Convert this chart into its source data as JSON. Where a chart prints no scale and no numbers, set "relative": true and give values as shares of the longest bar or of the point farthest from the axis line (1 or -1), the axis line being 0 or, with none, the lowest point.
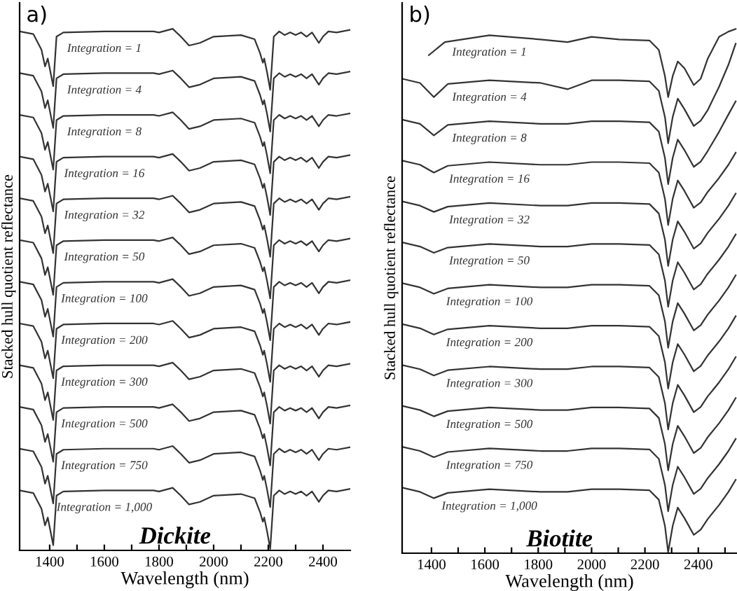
{
  "chart_data": [
    {
      "type": "line",
      "xlabel": "Wavelength (nm)",
      "ylabel": "Stacked hull quotient reflectance",
      "annotations": [
        "a)",
        "Dickite"
      ],
      "relative": true,
      "tick_labels": "x",
      "xlim": [
        1290,
        2500
      ],
      "xticks": [
        1400,
        {
          "value": 1500,
          "label": null
        },
        1600,
        {
          "value": 1700,
          "label": null
        },
        1800,
        {
          "value": 1900,
          "label": null
        },
        2000,
        {
          "value": 2100,
          "label": null
        },
        2200,
        {
          "value": 2300,
          "label": null
        },
        2400
      ],
      "x": [
        1290,
        1340,
        1370,
        1383,
        1393,
        1413,
        1425,
        1450,
        1600,
        1780,
        1800,
        1850,
        1880,
        1910,
        1950,
        2000,
        2100,
        2150,
        2170,
        2180,
        2185,
        2195,
        2207,
        2220,
        2240,
        2260,
        2280,
        2300,
        2320,
        2340,
        2360,
        2385,
        2400,
        2420,
        2450,
        2500
      ],
      "series": [
        {
          "name": "Integration = 1",
          "color": "#333333",
          "values": [
            0.995,
            0.99,
            0.96,
            0.928,
            0.943,
            0.89,
            0.985,
            0.993,
            0.995,
            0.995,
            0.993,
            1,
            0.985,
            0.968,
            0.973,
            0.985,
            0.988,
            0.98,
            0.953,
            0.935,
            0.943,
            0.918,
            0.883,
            0.985,
            0.995,
            0.988,
            0.993,
            0.988,
            0.993,
            0.985,
            0.993,
            0.973,
            0.985,
            0.995,
            0.993,
            0.998
          ]
        },
        {
          "name": "Integration = 4",
          "color": "#333333",
          "values": [
            0.915,
            0.91,
            0.88,
            0.848,
            0.863,
            0.81,
            0.905,
            0.913,
            0.915,
            0.915,
            0.913,
            0.92,
            0.905,
            0.888,
            0.893,
            0.905,
            0.908,
            0.9,
            0.873,
            0.855,
            0.863,
            0.838,
            0.803,
            0.905,
            0.915,
            0.908,
            0.913,
            0.908,
            0.913,
            0.905,
            0.913,
            0.893,
            0.905,
            0.915,
            0.913,
            0.918
          ]
        },
        {
          "name": "Integration = 8",
          "color": "#333333",
          "values": [
            0.835,
            0.83,
            0.8,
            0.768,
            0.783,
            0.73,
            0.825,
            0.833,
            0.835,
            0.835,
            0.833,
            0.84,
            0.825,
            0.808,
            0.813,
            0.825,
            0.828,
            0.82,
            0.793,
            0.775,
            0.783,
            0.758,
            0.723,
            0.825,
            0.835,
            0.828,
            0.833,
            0.828,
            0.833,
            0.825,
            0.833,
            0.813,
            0.825,
            0.835,
            0.833,
            0.838
          ]
        },
        {
          "name": "Integration = 16",
          "color": "#333333",
          "values": [
            0.755,
            0.75,
            0.72,
            0.688,
            0.703,
            0.65,
            0.745,
            0.753,
            0.755,
            0.755,
            0.753,
            0.76,
            0.745,
            0.728,
            0.733,
            0.745,
            0.748,
            0.74,
            0.713,
            0.695,
            0.703,
            0.678,
            0.643,
            0.745,
            0.755,
            0.748,
            0.753,
            0.748,
            0.753,
            0.745,
            0.753,
            0.733,
            0.745,
            0.755,
            0.753,
            0.758
          ]
        },
        {
          "name": "Integration = 32",
          "color": "#333333",
          "values": [
            0.675,
            0.67,
            0.64,
            0.608,
            0.623,
            0.57,
            0.665,
            0.673,
            0.675,
            0.675,
            0.673,
            0.68,
            0.665,
            0.648,
            0.653,
            0.665,
            0.668,
            0.66,
            0.633,
            0.615,
            0.623,
            0.598,
            0.563,
            0.665,
            0.675,
            0.668,
            0.673,
            0.668,
            0.673,
            0.665,
            0.673,
            0.653,
            0.665,
            0.675,
            0.673,
            0.678
          ]
        },
        {
          "name": "Integration = 50",
          "color": "#333333",
          "values": [
            0.595,
            0.59,
            0.56,
            0.528,
            0.543,
            0.49,
            0.585,
            0.593,
            0.595,
            0.595,
            0.593,
            0.6,
            0.585,
            0.568,
            0.573,
            0.585,
            0.588,
            0.58,
            0.553,
            0.535,
            0.543,
            0.518,
            0.483,
            0.585,
            0.595,
            0.588,
            0.593,
            0.588,
            0.593,
            0.585,
            0.593,
            0.573,
            0.585,
            0.595,
            0.593,
            0.598
          ]
        },
        {
          "name": "Integration = 100",
          "color": "#333333",
          "values": [
            0.515,
            0.51,
            0.48,
            0.448,
            0.463,
            0.41,
            0.505,
            0.513,
            0.515,
            0.515,
            0.513,
            0.52,
            0.505,
            0.488,
            0.493,
            0.505,
            0.508,
            0.5,
            0.473,
            0.455,
            0.463,
            0.438,
            0.403,
            0.505,
            0.515,
            0.508,
            0.513,
            0.508,
            0.513,
            0.505,
            0.513,
            0.493,
            0.505,
            0.515,
            0.513,
            0.518
          ]
        },
        {
          "name": "Integration = 200",
          "color": "#333333",
          "values": [
            0.435,
            0.43,
            0.4,
            0.368,
            0.383,
            0.33,
            0.425,
            0.433,
            0.435,
            0.435,
            0.433,
            0.44,
            0.425,
            0.408,
            0.413,
            0.425,
            0.428,
            0.42,
            0.393,
            0.375,
            0.383,
            0.358,
            0.323,
            0.425,
            0.435,
            0.428,
            0.433,
            0.428,
            0.433,
            0.425,
            0.433,
            0.413,
            0.425,
            0.435,
            0.433,
            0.438
          ]
        },
        {
          "name": "Integration = 300",
          "color": "#333333",
          "values": [
            0.355,
            0.35,
            0.32,
            0.288,
            0.303,
            0.25,
            0.345,
            0.353,
            0.355,
            0.355,
            0.353,
            0.36,
            0.345,
            0.328,
            0.333,
            0.345,
            0.348,
            0.34,
            0.313,
            0.295,
            0.303,
            0.278,
            0.243,
            0.345,
            0.355,
            0.348,
            0.353,
            0.348,
            0.353,
            0.345,
            0.353,
            0.333,
            0.345,
            0.355,
            0.353,
            0.358
          ]
        },
        {
          "name": "Integration = 500",
          "color": "#333333",
          "values": [
            0.275,
            0.27,
            0.24,
            0.208,
            0.223,
            0.17,
            0.265,
            0.273,
            0.275,
            0.275,
            0.273,
            0.28,
            0.265,
            0.248,
            0.253,
            0.265,
            0.268,
            0.26,
            0.233,
            0.215,
            0.223,
            0.198,
            0.163,
            0.265,
            0.275,
            0.268,
            0.273,
            0.268,
            0.273,
            0.265,
            0.273,
            0.253,
            0.265,
            0.275,
            0.273,
            0.278
          ]
        },
        {
          "name": "Integration = 750",
          "color": "#333333",
          "values": [
            0.195,
            0.19,
            0.16,
            0.128,
            0.143,
            0.09,
            0.185,
            0.193,
            0.195,
            0.195,
            0.193,
            0.2,
            0.185,
            0.168,
            0.173,
            0.185,
            0.188,
            0.18,
            0.153,
            0.135,
            0.143,
            0.118,
            0.083,
            0.185,
            0.195,
            0.188,
            0.193,
            0.188,
            0.193,
            0.185,
            0.193,
            0.173,
            0.185,
            0.195,
            0.193,
            0.198
          ]
        },
        {
          "name": "Integration = 1,000",
          "color": "#333333",
          "values": [
            0.115,
            0.11,
            0.08,
            0.048,
            0.063,
            0.01,
            0.105,
            0.113,
            0.115,
            0.115,
            0.113,
            0.12,
            0.105,
            0.088,
            0.093,
            0.105,
            0.108,
            0.1,
            0.073,
            0.055,
            0.063,
            0.038,
            0.003,
            0.105,
            0.115,
            0.108,
            0.113,
            0.108,
            0.113,
            0.105,
            0.113,
            0.093,
            0.105,
            0.115,
            0.113,
            0.118
          ]
        }
      ]
    },
    {
      "type": "line",
      "xlabel": "Wavelength (nm)",
      "ylabel": "Stacked hull quotient reflectance",
      "annotations": [
        "b)",
        "Biotite"
      ],
      "relative": true,
      "tick_labels": "x",
      "xlim": [
        1290,
        2545
      ],
      "xticks": [
        1400,
        {
          "value": 1500,
          "label": null
        },
        1600,
        {
          "value": 1700,
          "label": null
        },
        1800,
        {
          "value": 1900,
          "label": null
        },
        2000,
        {
          "value": 2100,
          "label": null
        },
        2200,
        {
          "value": 2300,
          "label": null
        },
        2400,
        {
          "value": 2500,
          "label": null
        }
      ],
      "x": [
        1290,
        1357,
        1409,
        1461,
        1617,
        1809,
        1910,
        2000,
        2104,
        2217,
        2252,
        2275,
        2287,
        2304,
        2323,
        2348,
        2383,
        2409,
        2435,
        2478,
        2513,
        2540
      ],
      "series": [
        {
          "name": "Integration = 1",
          "color": "#333333",
          "x": [
            1390,
            1450,
            1617,
            1809,
            1910,
            2000,
            2104,
            2217,
            2252,
            2275,
            2287,
            2304,
            2323,
            2348,
            2383,
            2409,
            2435,
            2478,
            2513,
            2540
          ],
          "values": [
            0.95,
            0.975,
            0.988,
            0.98,
            0.975,
            0.985,
            0.98,
            0.978,
            0.96,
            0.91,
            0.87,
            0.91,
            0.938,
            0.925,
            0.893,
            0.905,
            0.943,
            0.985,
            0.995,
            1.0
          ]
        },
        {
          "name": "Integration = 4",
          "color": "#333333",
          "values": [
            0.905,
            0.897,
            0.87,
            0.895,
            0.902,
            0.897,
            0.885,
            0.902,
            0.902,
            0.9,
            0.882,
            0.832,
            0.782,
            0.832,
            0.867,
            0.847,
            0.815,
            0.825,
            0.845,
            0.89,
            0.932,
            0.972
          ]
        },
        {
          "name": "Integration = 8",
          "color": "#333333",
          "values": [
            0.827,
            0.819,
            0.797,
            0.817,
            0.824,
            0.819,
            0.819,
            0.824,
            0.824,
            0.822,
            0.804,
            0.754,
            0.704,
            0.754,
            0.789,
            0.769,
            0.737,
            0.747,
            0.767,
            0.804,
            0.837,
            0.862
          ]
        },
        {
          "name": "Integration = 16",
          "color": "#333333",
          "values": [
            0.749,
            0.741,
            0.726,
            0.739,
            0.746,
            0.741,
            0.741,
            0.746,
            0.746,
            0.744,
            0.726,
            0.676,
            0.626,
            0.676,
            0.711,
            0.691,
            0.659,
            0.669,
            0.689,
            0.716,
            0.741,
            0.764
          ]
        },
        {
          "name": "Integration = 32",
          "color": "#333333",
          "values": [
            0.671,
            0.663,
            0.651,
            0.661,
            0.668,
            0.663,
            0.663,
            0.668,
            0.668,
            0.666,
            0.648,
            0.598,
            0.548,
            0.598,
            0.633,
            0.613,
            0.581,
            0.591,
            0.611,
            0.638,
            0.663,
            0.686
          ]
        },
        {
          "name": "Integration = 50",
          "color": "#333333",
          "values": [
            0.593,
            0.585,
            0.573,
            0.583,
            0.59,
            0.585,
            0.585,
            0.59,
            0.59,
            0.588,
            0.57,
            0.52,
            0.47,
            0.52,
            0.555,
            0.535,
            0.503,
            0.513,
            0.533,
            0.56,
            0.585,
            0.608
          ]
        },
        {
          "name": "Integration = 100",
          "color": "#333333",
          "values": [
            0.515,
            0.507,
            0.495,
            0.505,
            0.512,
            0.507,
            0.507,
            0.512,
            0.512,
            0.51,
            0.492,
            0.442,
            0.392,
            0.442,
            0.477,
            0.457,
            0.425,
            0.435,
            0.455,
            0.482,
            0.507,
            0.53
          ]
        },
        {
          "name": "Integration = 200",
          "color": "#333333",
          "values": [
            0.437,
            0.429,
            0.417,
            0.427,
            0.434,
            0.429,
            0.429,
            0.434,
            0.434,
            0.432,
            0.414,
            0.364,
            0.314,
            0.364,
            0.399,
            0.379,
            0.347,
            0.357,
            0.377,
            0.404,
            0.429,
            0.452
          ]
        },
        {
          "name": "Integration = 300",
          "color": "#333333",
          "values": [
            0.359,
            0.351,
            0.339,
            0.349,
            0.356,
            0.351,
            0.351,
            0.356,
            0.356,
            0.354,
            0.336,
            0.286,
            0.236,
            0.286,
            0.321,
            0.301,
            0.269,
            0.279,
            0.299,
            0.326,
            0.351,
            0.374
          ]
        },
        {
          "name": "Integration = 500",
          "color": "#333333",
          "values": [
            0.281,
            0.273,
            0.261,
            0.271,
            0.278,
            0.273,
            0.273,
            0.278,
            0.278,
            0.276,
            0.258,
            0.208,
            0.158,
            0.208,
            0.243,
            0.223,
            0.191,
            0.201,
            0.221,
            0.248,
            0.273,
            0.296
          ]
        },
        {
          "name": "Integration = 750",
          "color": "#333333",
          "values": [
            0.203,
            0.195,
            0.183,
            0.193,
            0.2,
            0.195,
            0.195,
            0.2,
            0.2,
            0.198,
            0.18,
            0.13,
            0.08,
            0.13,
            0.165,
            0.145,
            0.113,
            0.123,
            0.143,
            0.17,
            0.195,
            0.218
          ]
        },
        {
          "name": "Integration = 1,000",
          "color": "#333333",
          "values": [
            0.125,
            0.117,
            0.105,
            0.115,
            0.122,
            0.117,
            0.117,
            0.122,
            0.122,
            0.12,
            0.102,
            0.052,
            0.002,
            0.052,
            0.087,
            0.067,
            0.035,
            0.045,
            0.065,
            0.092,
            0.117,
            0.14
          ]
        }
      ]
    }
  ]
}
